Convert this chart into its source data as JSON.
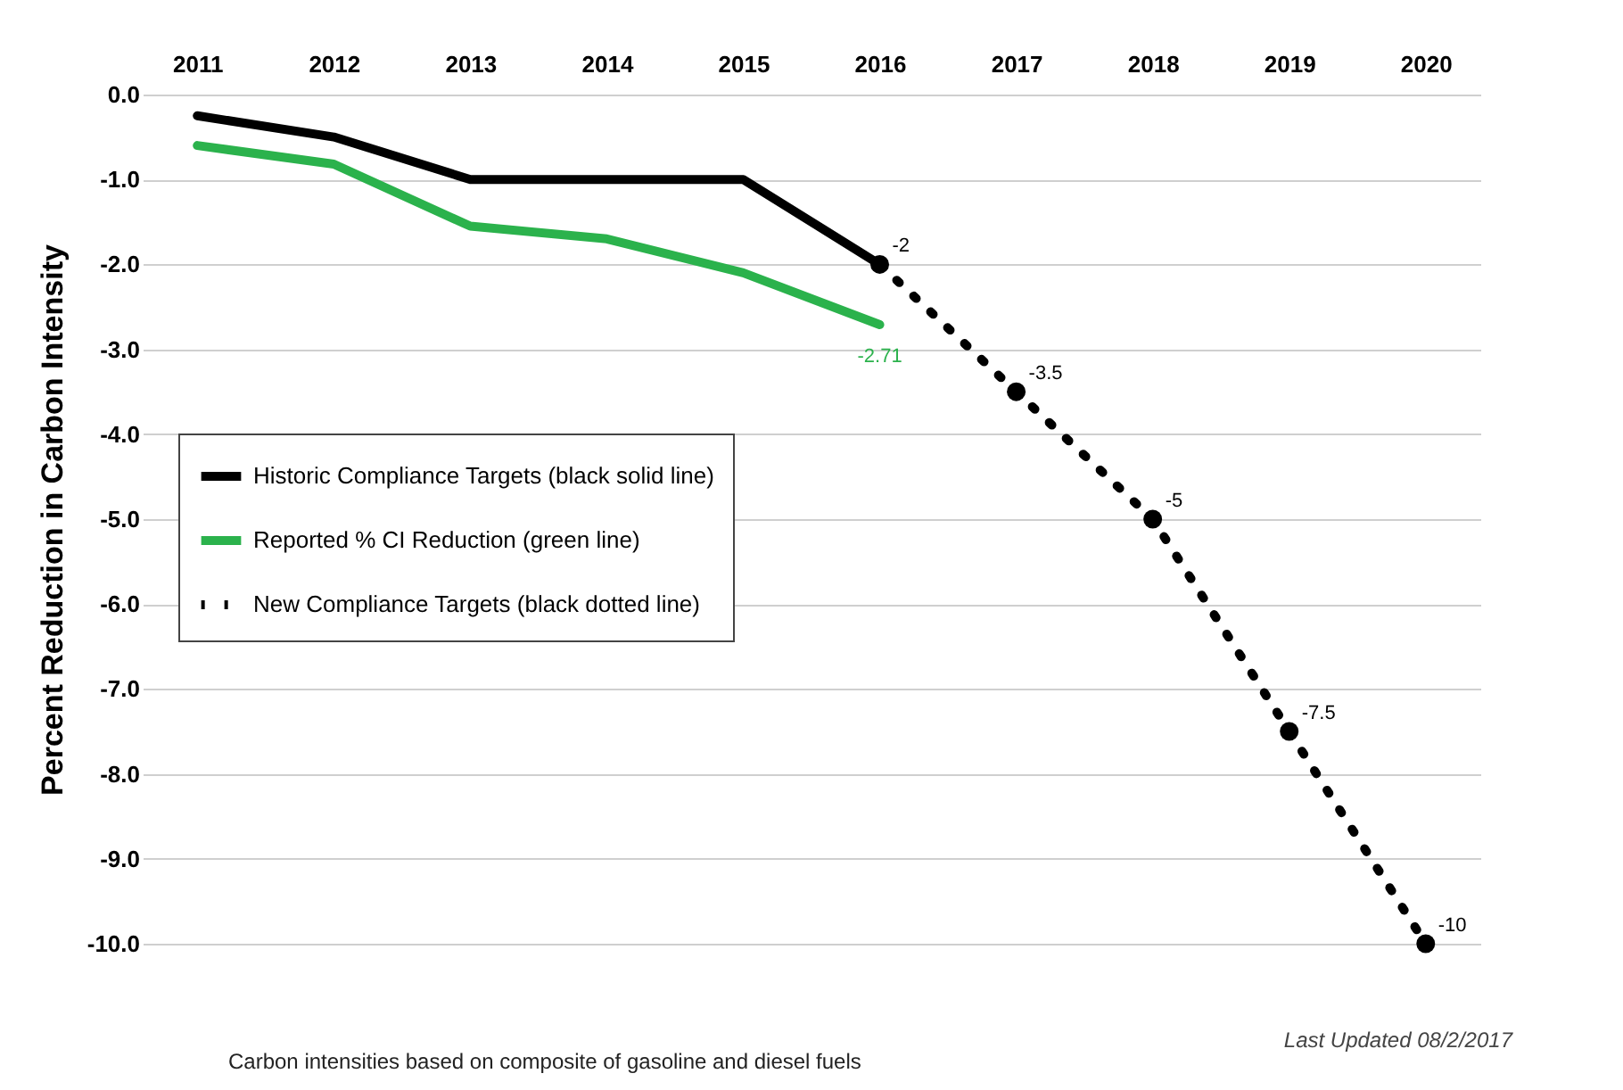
{
  "chart_data": {
    "type": "line",
    "ylabel": "Percent Reduction in Carbon Intensity",
    "categories": [
      "2011",
      "2012",
      "2013",
      "2014",
      "2015",
      "2016",
      "2017",
      "2018",
      "2019",
      "2020"
    ],
    "series": [
      {
        "name": "Historic Compliance Targets (black solid line)",
        "color": "#000000",
        "line_style": "solid",
        "marker": "none",
        "values": [
          -0.25,
          -0.5,
          -1,
          -1,
          -1,
          -2,
          null,
          null,
          null,
          null
        ],
        "value_labels": [
          null,
          null,
          null,
          null,
          null,
          "-2",
          null,
          null,
          null,
          null
        ]
      },
      {
        "name": "Reported % CI Reduction (green line)",
        "color": "#2bb24c",
        "line_style": "solid",
        "marker": "none",
        "values": [
          -0.6,
          -0.82,
          -1.55,
          -1.7,
          -2.1,
          -2.71,
          null,
          null,
          null,
          null
        ],
        "value_labels": [
          null,
          null,
          null,
          null,
          null,
          "-2.71",
          null,
          null,
          null,
          null
        ]
      },
      {
        "name": "New Compliance Targets (black dotted line)",
        "color": "#000000",
        "line_style": "dotted",
        "marker": "circle",
        "values": [
          null,
          null,
          null,
          null,
          null,
          -2,
          -3.5,
          -5,
          -7.5,
          -10
        ],
        "value_labels": [
          null,
          null,
          null,
          null,
          null,
          null,
          "-3.5",
          "-5",
          "-7.5",
          "-10"
        ]
      }
    ],
    "ylim": [
      -10,
      0
    ],
    "yticks": [
      {
        "value": 0,
        "label": "0.0"
      },
      {
        "value": -1,
        "label": "-1.0"
      },
      {
        "value": -2,
        "label": "-2.0"
      },
      {
        "value": -3,
        "label": "-3.0"
      },
      {
        "value": -4,
        "label": "-4.0"
      },
      {
        "value": -5,
        "label": "-5.0"
      },
      {
        "value": -6,
        "label": "-6.0"
      },
      {
        "value": -7,
        "label": "-7.0"
      },
      {
        "value": -8,
        "label": "-8.0"
      },
      {
        "value": -9,
        "label": "-9.0"
      },
      {
        "value": -10,
        "label": "-10.0"
      }
    ],
    "grid": "y",
    "legend": "left",
    "annotations": [
      "Carbon intensities based on composite of gasoline and diesel fuels",
      "Last Updated 08/2/2017"
    ]
  }
}
